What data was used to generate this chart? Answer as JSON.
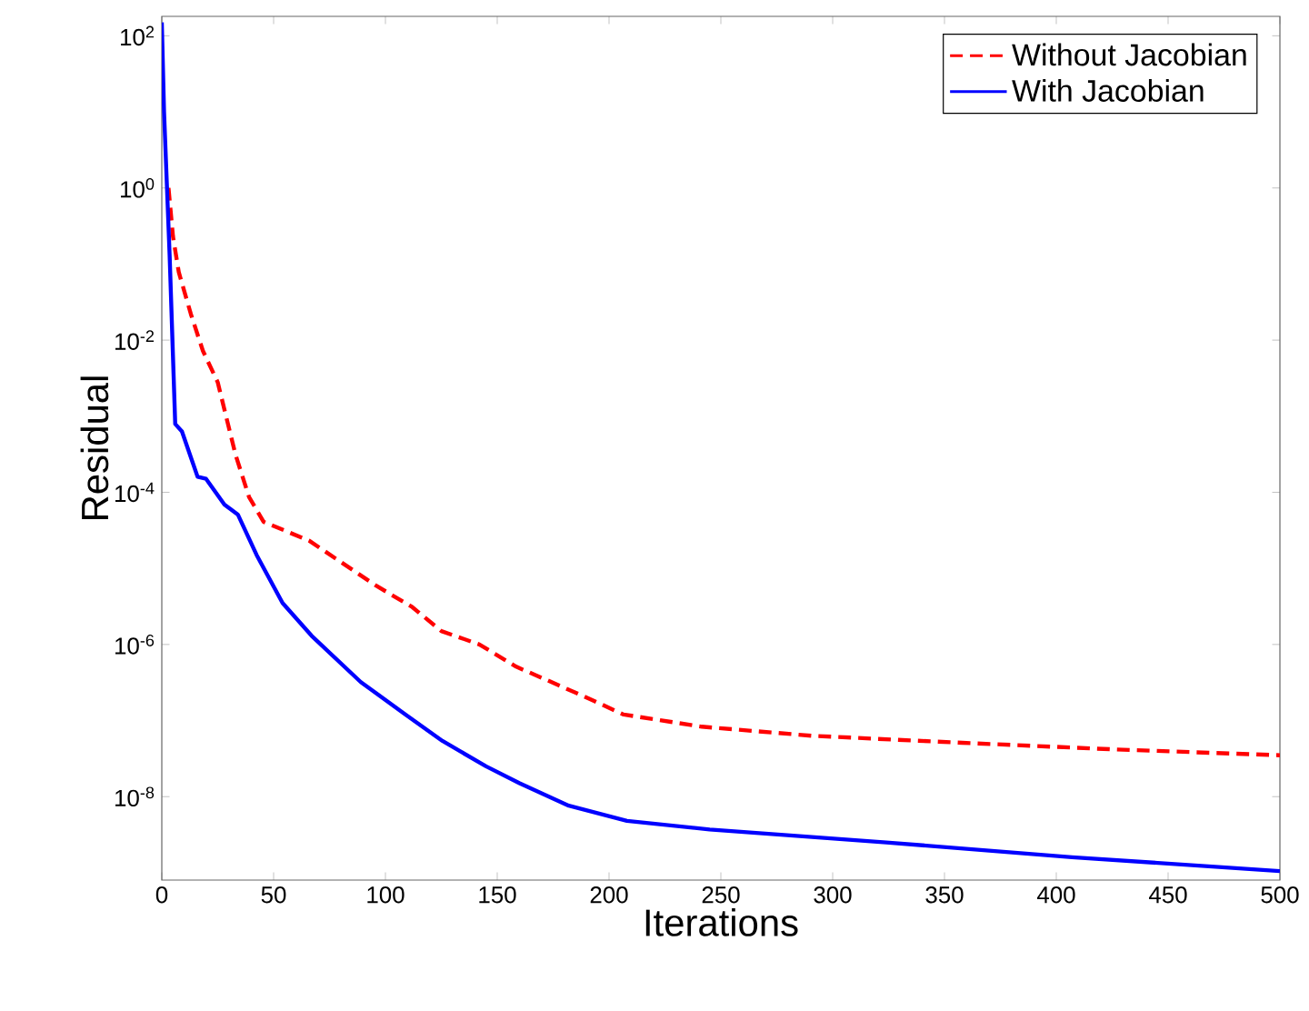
{
  "chart_data": {
    "type": "line",
    "xlabel": "Iterations",
    "ylabel": "Residual",
    "log": "y",
    "legend": "top right",
    "grid": false,
    "xlim": [
      0,
      500
    ],
    "xticks": [
      0,
      50,
      100,
      150,
      200,
      250,
      300,
      350,
      400,
      450,
      500
    ],
    "ylim": [
      8e-10,
      180
    ],
    "yticks": [
      {
        "value": 1e-08,
        "label": "10$^{-8}$"
      },
      {
        "value": 1e-06,
        "label": "10$^{-6}$"
      },
      {
        "value": 0.0001,
        "label": "10$^{-4}$"
      },
      {
        "value": 0.01,
        "label": "10$^{-2}$"
      },
      {
        "value": 1,
        "label": "10$^{0}$"
      },
      {
        "value": 100,
        "label": "10$^{2}$"
      }
    ],
    "series": [
      {
        "name": "Without Jacobian",
        "color": "#ff0000",
        "line_style": "dashed",
        "x": [
          3,
          5,
          7.6,
          13,
          18.4,
          25,
          29,
          33,
          39,
          45.5,
          66,
          95.5,
          112,
          125,
          142,
          158.5,
          188.5,
          206.5,
          241.5,
          291,
          358,
          424,
          500
        ],
        "values": [
          1,
          0.23,
          0.078,
          0.022,
          0.0072,
          0.0028,
          0.00093,
          0.00031,
          8.7e-05,
          4.1e-05,
          2.3e-05,
          6e-06,
          3.1e-06,
          1.5e-06,
          1e-06,
          5.1e-07,
          2.1e-07,
          1.2e-07,
          8.3e-08,
          6.3e-08,
          5.1e-08,
          4.2e-08,
          3.5e-08
        ]
      },
      {
        "name": "With Jacobian",
        "color": "#0000ff",
        "line_style": "solid",
        "x": [
          0,
          1,
          3.5,
          6,
          9,
          16,
          19.8,
          28,
          34,
          42.4,
          54,
          67,
          89,
          109,
          125.5,
          145,
          160,
          182,
          208,
          245,
          324,
          407,
          500
        ],
        "values": [
          150,
          10,
          0.13,
          0.00079,
          0.00063,
          0.00016,
          0.00015,
          6.9e-05,
          5.1e-05,
          1.5e-05,
          3.5e-06,
          1.3e-06,
          3.2e-07,
          1.2e-07,
          5.4e-08,
          2.5e-08,
          1.5e-08,
          7.6e-09,
          4.8e-09,
          3.7e-09,
          2.5e-09,
          1.6e-09,
          1.05e-09
        ]
      }
    ]
  }
}
